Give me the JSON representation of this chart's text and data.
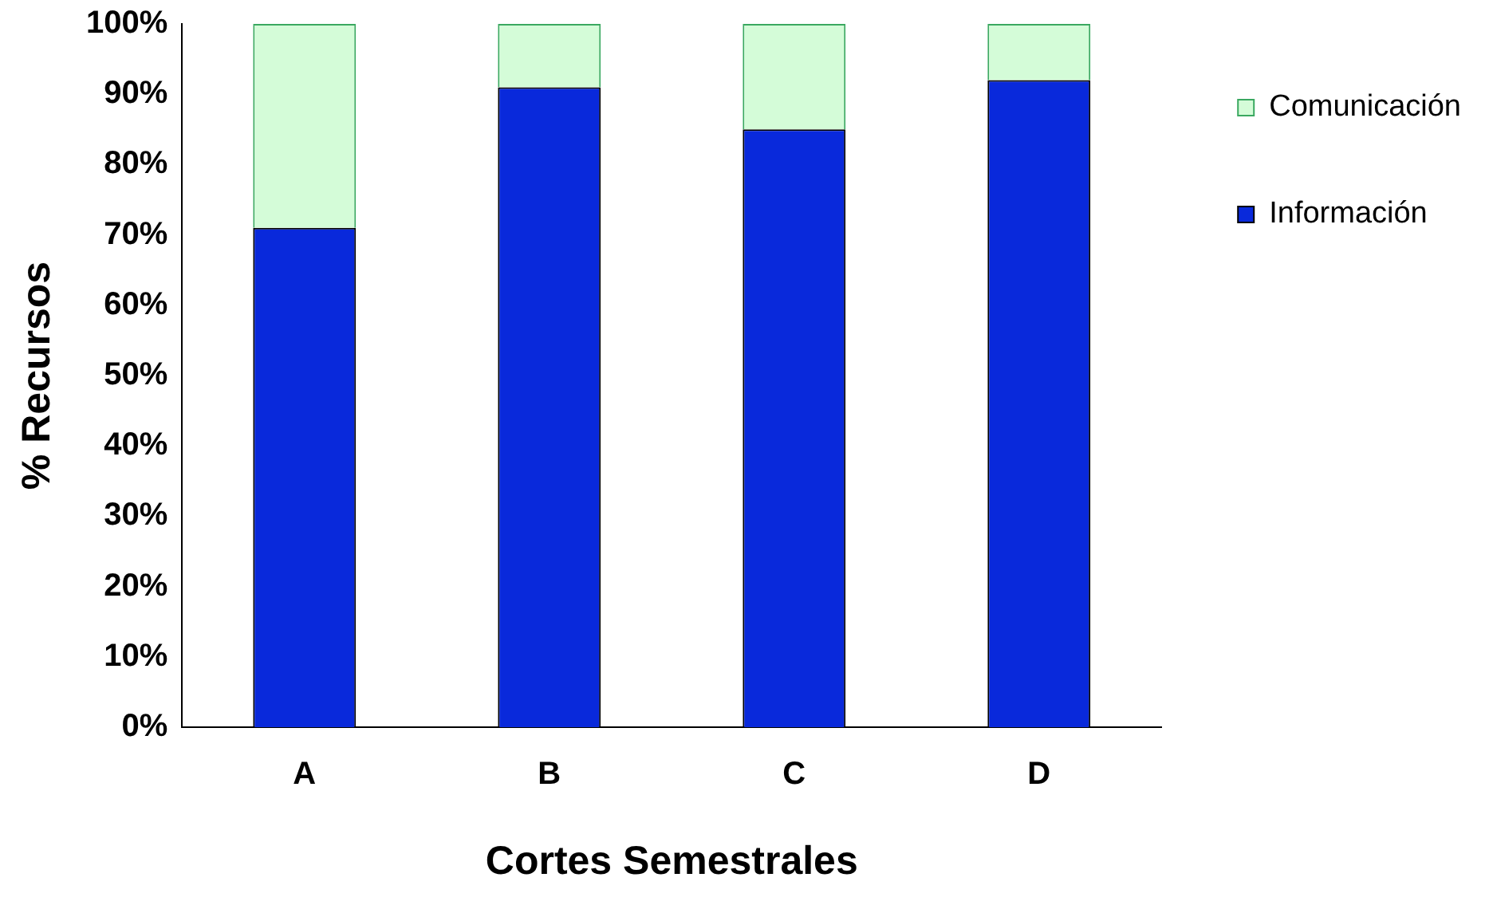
{
  "chart_data": {
    "type": "bar",
    "stacked": true,
    "xlabel": "Cortes Semestrales",
    "ylabel": "% Recursos",
    "categories": [
      "A",
      "B",
      "C",
      "D"
    ],
    "series": [
      {
        "name": "Información",
        "color": "#0929db",
        "values": [
          71,
          91,
          85,
          92
        ]
      },
      {
        "name": "Comunicación",
        "color": "#d4fcd8",
        "values": [
          29,
          9,
          15,
          8
        ]
      }
    ],
    "ylim": [
      0,
      100
    ],
    "yticks": [
      {
        "value": 0,
        "label": "0%"
      },
      {
        "value": 10,
        "label": "10%"
      },
      {
        "value": 20,
        "label": "20%"
      },
      {
        "value": 30,
        "label": "30%"
      },
      {
        "value": 40,
        "label": "40%"
      },
      {
        "value": 50,
        "label": "50%"
      },
      {
        "value": 60,
        "label": "60%"
      },
      {
        "value": 70,
        "label": "70%"
      },
      {
        "value": 80,
        "label": "80%"
      },
      {
        "value": 90,
        "label": "90%"
      },
      {
        "value": 100,
        "label": "100%"
      }
    ],
    "grid": false,
    "legend": "right"
  }
}
